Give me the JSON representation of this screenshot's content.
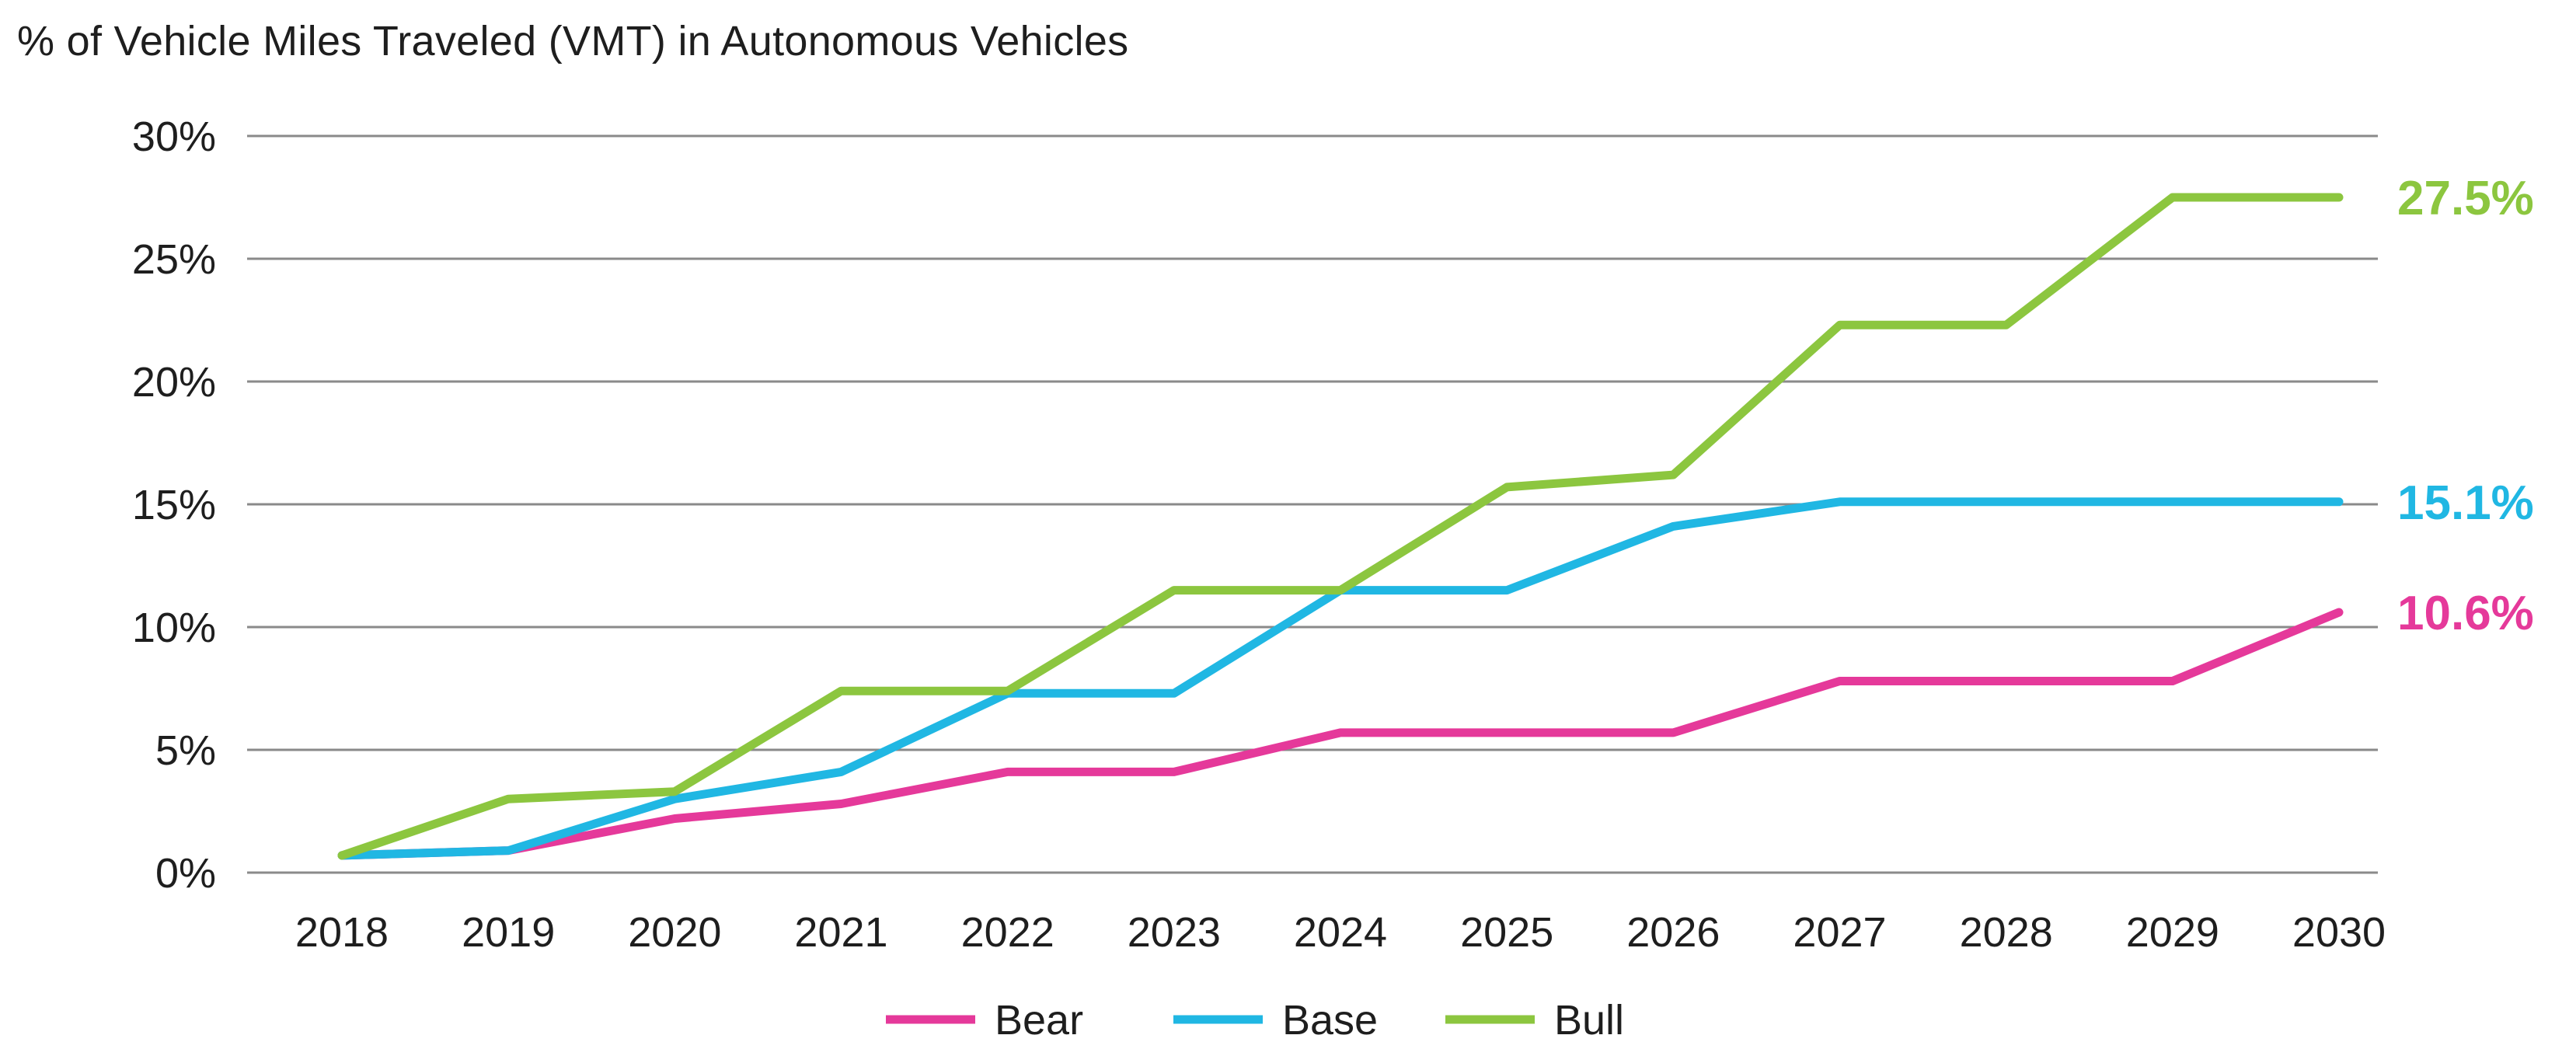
{
  "chart_data": {
    "type": "line",
    "title": "% of Vehicle Miles Traveled (VMT) in Autonomous Vehicles",
    "xlabel": "",
    "ylabel": "",
    "categories": [
      "2018",
      "2019",
      "2020",
      "2021",
      "2022",
      "2023",
      "2024",
      "2025",
      "2026",
      "2027",
      "2028",
      "2029",
      "2030"
    ],
    "ylim": [
      0,
      30
    ],
    "yticks": [
      0,
      5,
      10,
      15,
      20,
      25,
      30
    ],
    "ytick_labels": [
      "0%",
      "5%",
      "10%",
      "15%",
      "20%",
      "25%",
      "30%"
    ],
    "grid": true,
    "legend_position": "bottom-center",
    "series": [
      {
        "name": "Bear",
        "color": "#e5399a",
        "end_label": "10.6%",
        "values": [
          0.7,
          0.9,
          2.2,
          2.8,
          4.1,
          4.1,
          5.7,
          5.7,
          5.7,
          7.8,
          7.8,
          7.8,
          10.6
        ]
      },
      {
        "name": "Base",
        "color": "#20b7e3",
        "end_label": "15.1%",
        "values": [
          0.7,
          0.9,
          3.0,
          4.1,
          7.3,
          7.3,
          11.5,
          11.5,
          14.1,
          15.1,
          15.1,
          15.1,
          15.1
        ]
      },
      {
        "name": "Bull",
        "color": "#8cc63f",
        "end_label": "27.5%",
        "values": [
          0.7,
          3.0,
          3.3,
          7.4,
          7.4,
          11.5,
          11.5,
          15.7,
          16.2,
          22.3,
          22.3,
          27.5,
          27.5
        ]
      }
    ]
  }
}
